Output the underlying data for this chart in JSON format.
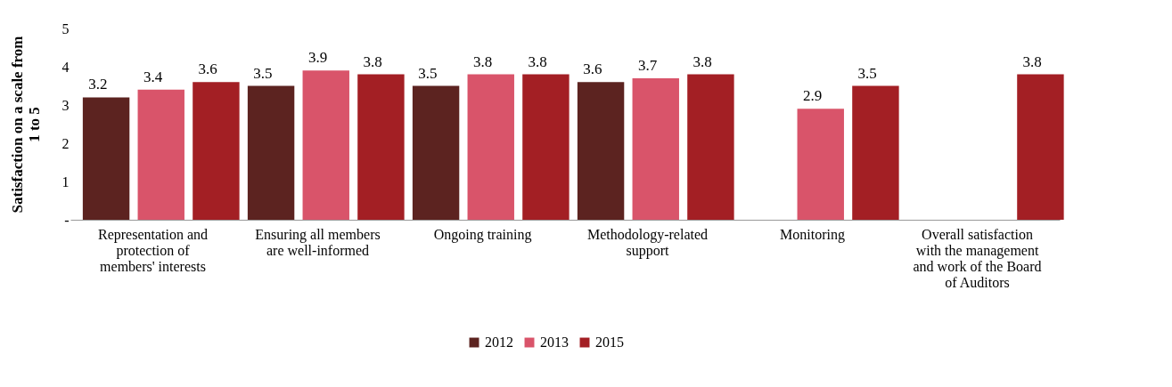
{
  "chart_data": {
    "type": "bar",
    "ylabel": "Satisfaction on a scale from 1 to 5",
    "categories": [
      "Representation and protection of members' interests",
      "Ensuring all members are well-informed",
      "Ongoing training",
      "Methodology-related support",
      "Monitoring",
      "Overall satisfaction with the management and work of the Board of Auditors"
    ],
    "series": [
      {
        "name": "2012",
        "color": "#5c2320",
        "values": [
          3.2,
          3.5,
          3.5,
          3.6,
          null,
          null
        ]
      },
      {
        "name": "2013",
        "color": "#d9546a",
        "values": [
          3.4,
          3.9,
          3.8,
          3.7,
          2.9,
          null
        ]
      },
      {
        "name": "2015",
        "color": "#a31f24",
        "values": [
          3.6,
          3.8,
          3.8,
          3.8,
          3.5,
          3.8
        ]
      }
    ],
    "ylim": [
      0,
      5
    ],
    "yticks": [
      {
        "value": 0,
        "label": "-"
      },
      1,
      2,
      3,
      4,
      5
    ],
    "grid": false,
    "legend": "bottom",
    "data_labels": true
  }
}
